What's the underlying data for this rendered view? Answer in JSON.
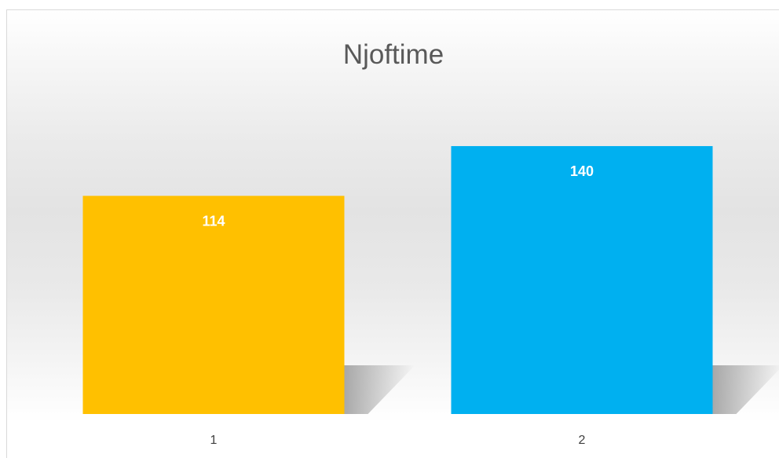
{
  "chart_data": {
    "type": "bar",
    "title": "Njoftime",
    "categories": [
      "1",
      "2"
    ],
    "values": [
      114,
      140
    ],
    "colors": [
      "#FFC000",
      "#00B0F0"
    ],
    "xlabel": "",
    "ylabel": "",
    "ylim": [
      0,
      156
    ],
    "grid": false,
    "legend": "none",
    "data_labels": "inside-top"
  }
}
